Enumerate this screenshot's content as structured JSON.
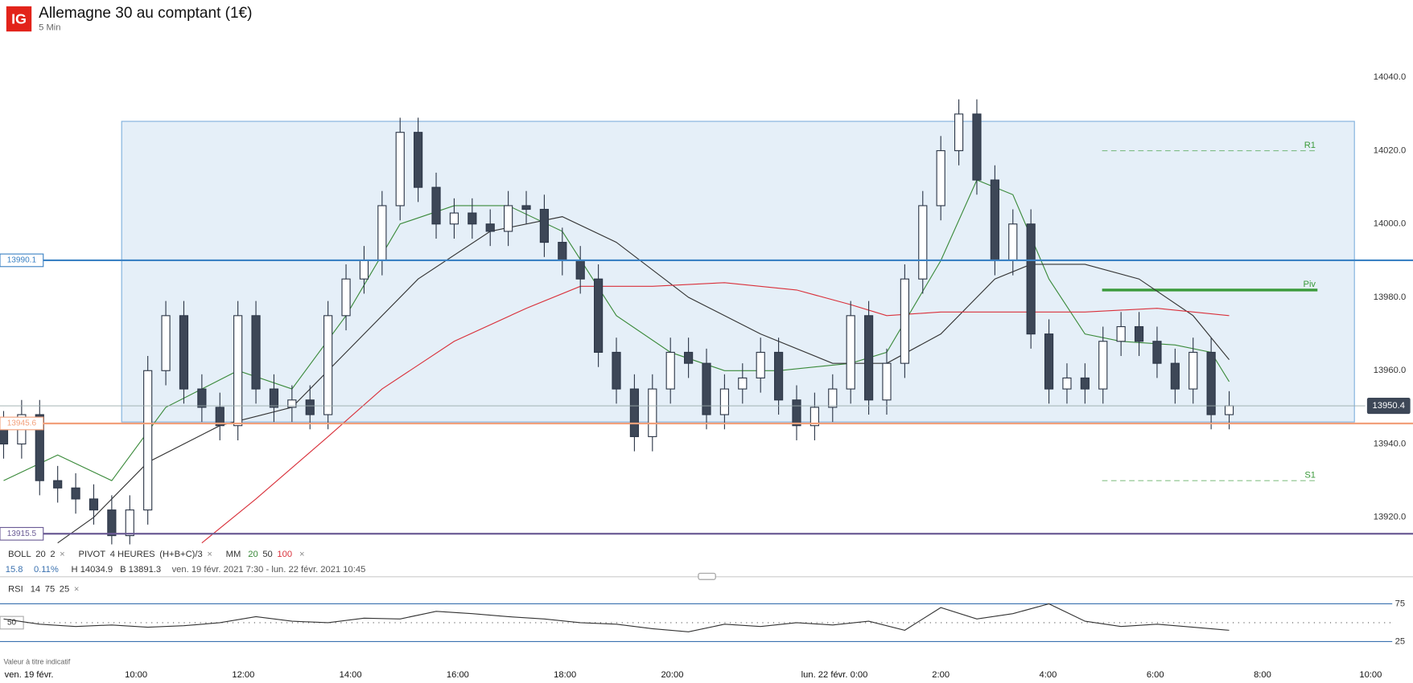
{
  "header": {
    "logo": "IG",
    "title": "Allemagne 30 au comptant (1€)",
    "interval": "5 Min"
  },
  "chart_data": {
    "type": "candlestick",
    "xlim": [
      -0.2,
      78.2
    ],
    "xticks": [
      {
        "value": 0.05,
        "label": "ven. 19 févr."
      },
      {
        "value": 7.35,
        "label": "10:00"
      },
      {
        "value": 13.3,
        "label": "12:00"
      },
      {
        "value": 19.25,
        "label": "14:00"
      },
      {
        "value": 25.2,
        "label": "16:00"
      },
      {
        "value": 31.15,
        "label": "18:00"
      },
      {
        "value": 37.1,
        "label": "20:00"
      },
      {
        "value": 46.1,
        "label": "lun. 22 févr. 0:00"
      },
      {
        "value": 52,
        "label": "2:00"
      },
      {
        "value": 57.95,
        "label": "4:00"
      },
      {
        "value": 63.9,
        "label": "6:00"
      },
      {
        "value": 69.85,
        "label": "8:00"
      },
      {
        "value": 75.85,
        "label": "10:00"
      }
    ],
    "ylim": [
      13912.6,
      14061.1
    ],
    "yticks": [
      {
        "value": 13920,
        "label": "13920.0"
      },
      {
        "value": 13940,
        "label": "13940.0"
      },
      {
        "value": 13960,
        "label": "13960.0"
      },
      {
        "value": 13980,
        "label": "13980.0"
      },
      {
        "value": 14000,
        "label": "14000.0"
      },
      {
        "value": 14020,
        "label": "14020.0"
      },
      {
        "value": 14040,
        "label": "14040.0"
      }
    ],
    "up_color": "#ffffff",
    "down_color": "#3d4757",
    "edge_color": "#2d3748",
    "open": [
      13945,
      13940,
      13948,
      13930,
      13928,
      13925,
      13922,
      13915,
      13922,
      13960,
      13975,
      13955,
      13950,
      13945,
      13975,
      13955,
      13950,
      13952,
      13948,
      13975,
      13985,
      13990,
      14005,
      14025,
      14010,
      14000,
      14003,
      14000,
      13998,
      14005,
      14004,
      13995,
      13990,
      13985,
      13965,
      13955,
      13942,
      13955,
      13965,
      13962,
      13948,
      13955,
      13958,
      13965,
      13952,
      13945,
      13950,
      13955,
      13975,
      13952,
      13962,
      13985,
      14005,
      14020,
      14030,
      14012,
      13990,
      14000,
      13970,
      13955,
      13958,
      13955,
      13968,
      13972,
      13968,
      13962,
      13955,
      13965,
      13948
    ],
    "high": [
      13949,
      13952,
      13952,
      13934,
      13932,
      13929,
      13926,
      13926,
      13964,
      13979,
      13979,
      13959,
      13954,
      13979,
      13979,
      13959,
      13956,
      13956,
      13979,
      13989,
      13994,
      14009,
      14029,
      14029,
      14014,
      14007,
      14007,
      14004,
      14009,
      14009,
      14008,
      13999,
      13994,
      13989,
      13969,
      13959,
      13959,
      13969,
      13969,
      13966,
      13959,
      13962,
      13969,
      13969,
      13956,
      13954,
      13959,
      13979,
      13979,
      13966,
      13989,
      14009,
      14024,
      14034,
      14034,
      14016,
      14004,
      14004,
      13974,
      13962,
      13962,
      13972,
      13976,
      13976,
      13972,
      13966,
      13969,
      13969,
      13954.4
    ],
    "low": [
      13936,
      13936,
      13926,
      13924,
      13921,
      13918,
      13911,
      13911,
      13918,
      13956,
      13951,
      13946,
      13941,
      13941,
      13951,
      13946,
      13946,
      13944,
      13944,
      13971,
      13981,
      13986,
      14001,
      14006,
      13996,
      13996,
      13996,
      13994,
      13994,
      14000,
      13991,
      13986,
      13981,
      13961,
      13951,
      13938,
      13938,
      13951,
      13958,
      13944,
      13944,
      13951,
      13954,
      13948,
      13941,
      13941,
      13946,
      13951,
      13948,
      13948,
      13958,
      13981,
      14001,
      14016,
      14008,
      13986,
      13986,
      13966,
      13951,
      13951,
      13951,
      13951,
      13964,
      13964,
      13958,
      13951,
      13951,
      13944,
      13944
    ],
    "close": [
      13940,
      13948,
      13930,
      13928,
      13925,
      13922,
      13915,
      13922,
      13960,
      13975,
      13955,
      13950,
      13945,
      13975,
      13955,
      13950,
      13952,
      13948,
      13975,
      13985,
      13990,
      14005,
      14025,
      14010,
      14000,
      14003,
      14000,
      13998,
      14005,
      14004,
      13995,
      13990,
      13985,
      13965,
      13955,
      13942,
      13955,
      13965,
      13962,
      13948,
      13955,
      13958,
      13965,
      13952,
      13945,
      13950,
      13955,
      13975,
      13952,
      13962,
      13985,
      14005,
      14020,
      14030,
      14012,
      13990,
      14000,
      13970,
      13955,
      13958,
      13955,
      13968,
      13972,
      13968,
      13962,
      13955,
      13965,
      13948,
      13950.4
    ],
    "series": [
      {
        "name": "20",
        "color": "#3a8a3a",
        "x": [
          0,
          3,
          6,
          9,
          13,
          16,
          19,
          22,
          25,
          28,
          31,
          34,
          37,
          40,
          43,
          47,
          49,
          52,
          54,
          56,
          58,
          60,
          62,
          65,
          67,
          68
        ],
        "values": [
          13930,
          13937,
          13930,
          13950,
          13960,
          13955,
          13975,
          14000,
          14005,
          14005,
          13998,
          13975,
          13965,
          13960,
          13960,
          13962,
          13965,
          13990,
          14012,
          14008,
          13985,
          13970,
          13968,
          13967,
          13965,
          13957
        ]
      },
      {
        "name": "50",
        "color": "#333333",
        "x": [
          3,
          5,
          8,
          12,
          16,
          19,
          23,
          27,
          31,
          34,
          38,
          42,
          46,
          49,
          52,
          55,
          57,
          60,
          63,
          66,
          68
        ],
        "values": [
          13913,
          13920,
          13935,
          13945,
          13950,
          13965,
          13985,
          13998,
          14002,
          13995,
          13980,
          13970,
          13962,
          13962,
          13970,
          13985,
          13989,
          13989,
          13985,
          13975,
          13963
        ]
      },
      {
        "name": "100",
        "color": "#d9303a",
        "x": [
          11,
          14,
          18,
          21,
          25,
          29,
          32,
          36,
          40,
          44,
          47,
          49,
          52,
          56,
          60,
          64,
          68
        ],
        "values": [
          13913,
          13925,
          13942,
          13955,
          13968,
          13977,
          13983,
          13983,
          13984,
          13982,
          13978,
          13975,
          13976,
          13976,
          13976,
          13977,
          13975
        ]
      }
    ],
    "zone": {
      "high": 14028,
      "low": 13946,
      "color": "#cfe2f3"
    },
    "levels": [
      {
        "value": 13990.1,
        "color": "#3b82c4"
      },
      {
        "value": 13945.6,
        "color": "#f2a07b"
      },
      {
        "value": 13915.5,
        "color": "#6b5b95"
      }
    ],
    "last": 13950.4,
    "pivots": [
      {
        "name": "R1",
        "value": 14020,
        "dashed": true
      },
      {
        "name": "Piv",
        "value": 13982,
        "dashed": false
      },
      {
        "name": "S1",
        "value": 13930,
        "dashed": true
      }
    ],
    "pivot_color": "#3a9a3a",
    "rsi": {
      "name": "RSI",
      "params": [
        "14",
        "75",
        "25"
      ],
      "color": "#333333",
      "ylim": [
        0,
        100
      ],
      "yticks": [
        25,
        75
      ],
      "midline": 50,
      "x": [
        0,
        2,
        4,
        6,
        8,
        10,
        12,
        14,
        16,
        18,
        20,
        22,
        24,
        26,
        28,
        30,
        32,
        34,
        36,
        38,
        40,
        42,
        44,
        46,
        48,
        50,
        52,
        54,
        56,
        58,
        60,
        62,
        64,
        66,
        68
      ],
      "values": [
        55,
        48,
        45,
        47,
        44,
        46,
        50,
        58,
        52,
        50,
        56,
        55,
        65,
        62,
        58,
        55,
        50,
        48,
        42,
        38,
        48,
        45,
        50,
        47,
        52,
        40,
        70,
        55,
        62,
        75,
        52,
        45,
        48,
        44,
        40
      ]
    }
  },
  "legend": {
    "boll": [
      "BOLL",
      "20",
      "2"
    ],
    "pivot": [
      "PIVOT",
      "4 HEURES",
      "(H+B+C)/3"
    ],
    "mm": [
      "MM",
      "20",
      "50",
      "100"
    ],
    "close": "×",
    "info": [
      "15.8",
      "0.11%",
      "H 14034.9",
      "B 13891.3",
      "ven. 19 févr. 2021 7:30 - lun. 22 févr. 2021 10:45"
    ]
  },
  "footer": "Valeur à titre indicatif"
}
